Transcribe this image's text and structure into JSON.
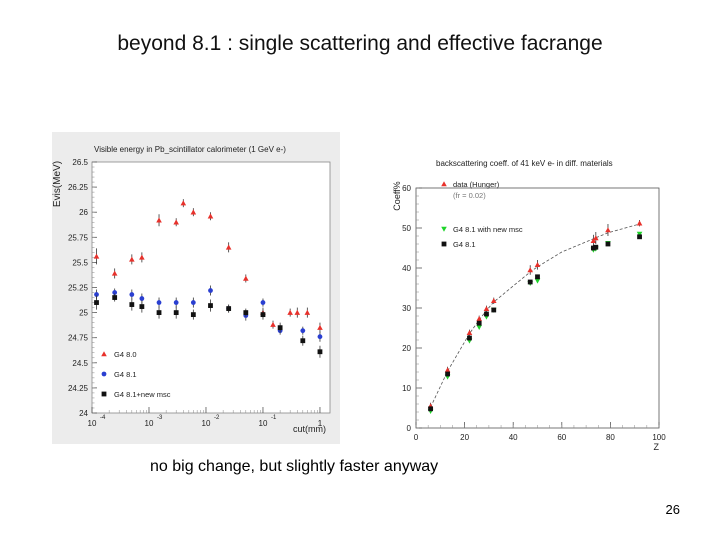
{
  "slide": {
    "title": "beyond 8.1 : single scattering and effective facrange",
    "caption": "no big change, but slightly faster anyway",
    "page_number": "26"
  },
  "chart_data": [
    {
      "type": "scatter",
      "title": "Visible energy in Pb_scintillator calorimeter (1 GeV e-)",
      "xlabel": "cut(mm)",
      "ylabel": "Evis(MeV)",
      "xscale": "log",
      "xlim": [
        0.0001,
        1.5
      ],
      "ylim": [
        24,
        26.5
      ],
      "xticks": [
        {
          "v": 0.0001,
          "base": "10",
          "exp": "-4"
        },
        {
          "v": 0.001,
          "base": "10",
          "exp": "-3"
        },
        {
          "v": 0.01,
          "base": "10",
          "exp": "-2"
        },
        {
          "v": 0.1,
          "base": "10",
          "exp": "-1"
        },
        {
          "v": 1,
          "base": "1",
          "exp": ""
        }
      ],
      "yticks": [
        "24",
        "24.25",
        "24.5",
        "24.75",
        "25",
        "25.25",
        "25.5",
        "25.75",
        "26",
        "26.25",
        "26.5"
      ],
      "legend_position": "bottom-left",
      "colors": {
        "background": "#ececec",
        "frame": "#ffffff"
      },
      "series": [
        {
          "name": "G4 8.0",
          "marker": "triangle-up",
          "color": "#e8312b",
          "x": [
            0.00012,
            0.00025,
            0.0005,
            0.00075,
            0.0015,
            0.003,
            0.004,
            0.006,
            0.012,
            0.025,
            0.05,
            0.1,
            0.15,
            0.3,
            0.4,
            0.6,
            1.0
          ],
          "y": [
            25.56,
            25.39,
            25.53,
            25.55,
            25.92,
            25.9,
            26.09,
            26.0,
            25.96,
            25.65,
            25.34,
            25.0,
            24.88,
            25.0,
            25.0,
            25.0,
            24.85
          ],
          "err": [
            0.08,
            0.05,
            0.05,
            0.05,
            0.06,
            0.04,
            0.04,
            0.04,
            0.04,
            0.05,
            0.04,
            0.05,
            0.04,
            0.04,
            0.05,
            0.05,
            0.05
          ]
        },
        {
          "name": "G4 8.1",
          "marker": "circle",
          "color": "#2a3fd1",
          "x": [
            0.00012,
            0.00025,
            0.0005,
            0.00075,
            0.0015,
            0.003,
            0.006,
            0.012,
            0.025,
            0.05,
            0.1,
            0.2,
            0.5,
            1.0
          ],
          "y": [
            25.18,
            25.2,
            25.18,
            25.14,
            25.1,
            25.1,
            25.1,
            25.22,
            25.04,
            24.97,
            25.1,
            24.82,
            24.82,
            24.76
          ],
          "err": [
            0.05,
            0.04,
            0.05,
            0.05,
            0.05,
            0.05,
            0.05,
            0.05,
            0.04,
            0.05,
            0.04,
            0.04,
            0.04,
            0.05
          ]
        },
        {
          "name": "G4 8.1+new msc",
          "marker": "square",
          "color": "#111111",
          "x": [
            0.00012,
            0.00025,
            0.0005,
            0.00075,
            0.0015,
            0.003,
            0.006,
            0.012,
            0.025,
            0.05,
            0.1,
            0.2,
            0.5,
            1.0
          ],
          "y": [
            25.1,
            25.15,
            25.08,
            25.06,
            25.0,
            25.0,
            24.98,
            25.07,
            25.04,
            25.0,
            24.98,
            24.85,
            24.72,
            24.61
          ],
          "err": [
            0.07,
            0.04,
            0.06,
            0.06,
            0.06,
            0.06,
            0.05,
            0.06,
            0.04,
            0.04,
            0.05,
            0.05,
            0.05,
            0.06
          ]
        }
      ]
    },
    {
      "type": "scatter",
      "title": "backscattering coeff. of 41 keV e- in diff. materials",
      "xlabel": "Z",
      "ylabel": "Coeff%",
      "xlim": [
        0,
        100
      ],
      "ylim": [
        0,
        60
      ],
      "xticks": [
        "0",
        "20",
        "40",
        "60",
        "80",
        "100"
      ],
      "yticks": [
        "0",
        "10",
        "20",
        "30",
        "40",
        "50",
        "60"
      ],
      "legend_position": "top-left",
      "legend_note": "(fr = 0.02)",
      "series": [
        {
          "name": "data (Hunger)",
          "marker": "triangle-up",
          "color": "#e8312b",
          "x": [
            6,
            13,
            22,
            26,
            29,
            32,
            47,
            50,
            73,
            74,
            79,
            92
          ],
          "y": [
            5.5,
            14.5,
            23.8,
            27.3,
            29.8,
            31.8,
            39.5,
            40.8,
            46.8,
            47.5,
            49.5,
            51.2
          ],
          "err": [
            0.8,
            0.8,
            0.8,
            0.8,
            0.8,
            0.8,
            1.2,
            1.2,
            1.5,
            1.5,
            1.5,
            0.8
          ]
        },
        {
          "name": "G4 8.1 with new msc",
          "marker": "triangle-down",
          "color": "#1fd42a",
          "x": [
            6,
            13,
            22,
            26,
            29,
            32,
            47,
            50,
            73,
            74,
            79,
            92
          ],
          "y": [
            4.2,
            12.8,
            21.8,
            25.2,
            27.8,
            29.5,
            36.2,
            36.8,
            44.5,
            44.8,
            46.2,
            48.5
          ]
        },
        {
          "name": "G4 8.1",
          "marker": "square",
          "color": "#111111",
          "x": [
            6,
            13,
            22,
            26,
            29,
            32,
            47,
            50,
            73,
            74,
            79,
            92
          ],
          "y": [
            4.8,
            13.5,
            22.5,
            26.2,
            28.5,
            29.5,
            36.5,
            37.8,
            45.0,
            45.2,
            46.0,
            47.8
          ]
        },
        {
          "name": "fit",
          "marker": "dashed-line",
          "color": "#555555",
          "x": [
            6,
            13,
            22,
            26,
            29,
            32,
            47,
            50,
            60,
            73,
            79,
            92
          ],
          "y": [
            5.2,
            14.2,
            23.6,
            27.0,
            29.4,
            31.5,
            39.0,
            40.3,
            44.0,
            47.3,
            48.8,
            51.0
          ]
        }
      ]
    }
  ]
}
